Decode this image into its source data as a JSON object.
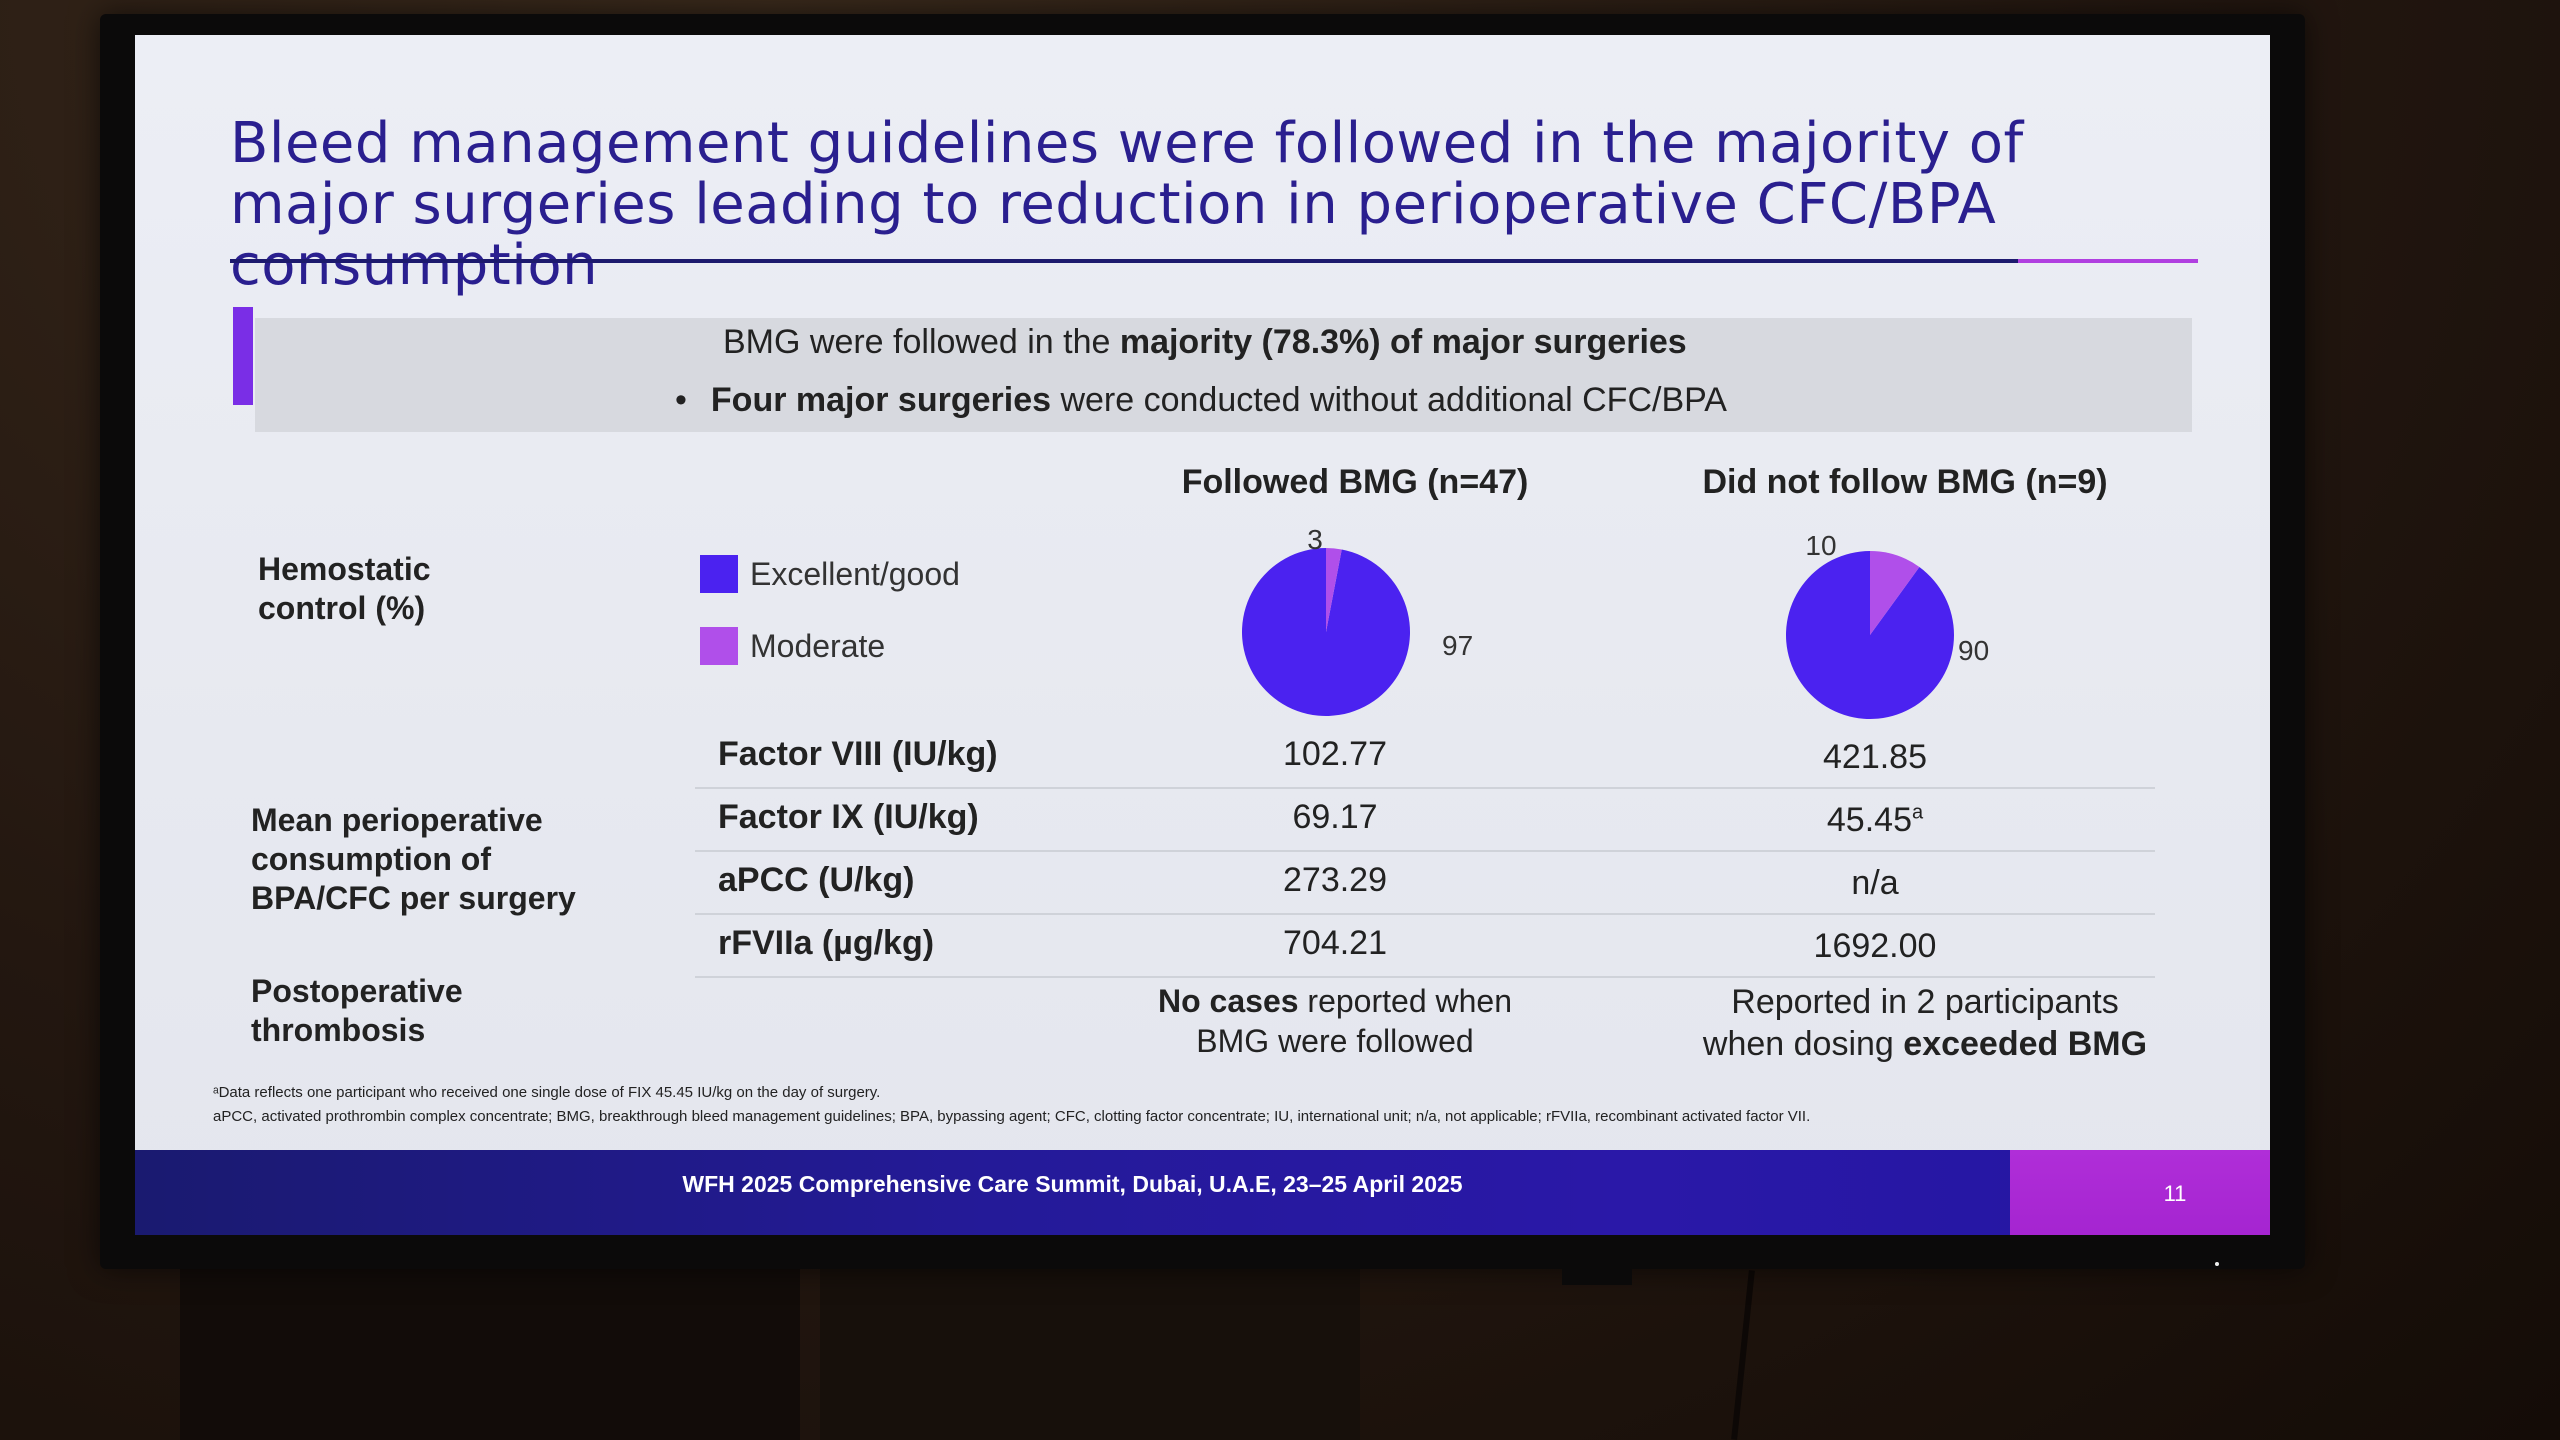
{
  "slide": {
    "title": "Bleed management guidelines were followed in the majority of major surgeries leading to reduction in perioperative CFC/BPA consumption",
    "callout": {
      "line1_prefix": "BMG were followed in the ",
      "line1_bold": "majority (78.3%) of major surgeries",
      "bullet": "•",
      "line2_bold": "Four major surgeries",
      "line2_suffix": " were conducted without additional CFC/BPA"
    },
    "columns": {
      "followed": "Followed BMG (n=47)",
      "not_followed": "Did not follow BMG (n=9)"
    },
    "rows": {
      "hemostatic": "Hemostatic control (%)",
      "consumption": "Mean perioperative consumption of BPA/CFC per surgery",
      "thrombosis": "Postoperative thrombosis"
    },
    "legend": {
      "excellent": "Excellent/good",
      "moderate": "Moderate"
    },
    "metrics": [
      {
        "label": "Factor VIII (IU/kg)",
        "followed": "102.77",
        "not_followed": "421.85",
        "not_followed_sup": ""
      },
      {
        "label": "Factor IX (IU/kg)",
        "followed": "69.17",
        "not_followed": "45.45",
        "not_followed_sup": "a"
      },
      {
        "label": "aPCC (U/kg)",
        "followed": "273.29",
        "not_followed": "n/a",
        "not_followed_sup": ""
      },
      {
        "label": "rFVIIa (µg/kg)",
        "followed": "704.21",
        "not_followed": "1692.00",
        "not_followed_sup": ""
      }
    ],
    "thrombosis": {
      "followed_bold": "No cases",
      "followed_rest1": " reported when",
      "followed_rest2": "BMG were followed",
      "not_followed_line1": "Reported in 2 participants",
      "not_followed_prefix": "when dosing ",
      "not_followed_bold": "exceeded BMG"
    },
    "footnotes": {
      "line1": "ᵃData reflects one participant who received one single dose of FIX 45.45 IU/kg on the day of surgery.",
      "line2": "aPCC, activated prothrombin complex concentrate; BMG, breakthrough bleed management guidelines; BPA, bypassing agent; CFC, clotting factor concentrate; IU, international unit; n/a, not applicable; rFVIIa, recombinant activated factor VII."
    },
    "footer": {
      "event": "WFH 2025 Comprehensive Care Summit, Dubai, U.A.E, 23–25 April 2025",
      "page": "11"
    }
  },
  "colors": {
    "excellent": "#4b22f0",
    "moderate": "#b04fea",
    "title": "#2a1f8f"
  },
  "chart_data": [
    {
      "type": "pie",
      "title": "Followed BMG (n=47)",
      "categories": [
        "Excellent/good",
        "Moderate"
      ],
      "values": [
        97,
        3
      ],
      "labels": [
        "97",
        "3"
      ]
    },
    {
      "type": "pie",
      "title": "Did not follow BMG (n=9)",
      "categories": [
        "Excellent/good",
        "Moderate"
      ],
      "values": [
        90,
        10
      ],
      "labels": [
        "90",
        "10"
      ]
    }
  ]
}
